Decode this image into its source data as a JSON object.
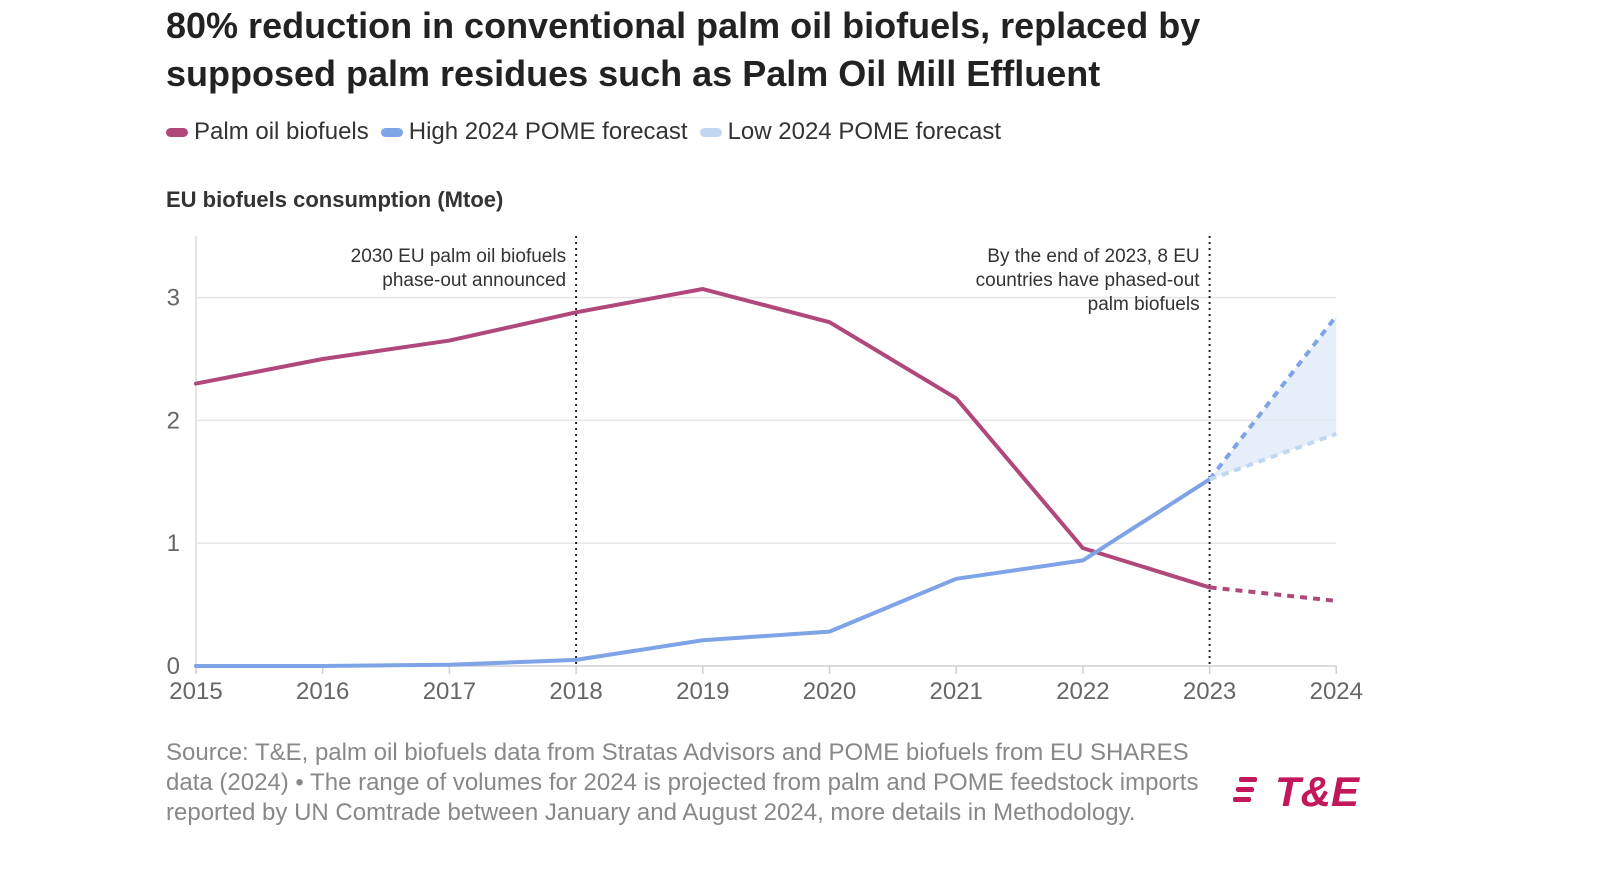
{
  "title": "80% reduction in conventional palm oil biofuels, replaced by supposed palm residues such as Palm Oil Mill Effluent",
  "legend": [
    {
      "label": "Palm oil biofuels",
      "color": "#b0487a"
    },
    {
      "label": "High 2024 POME forecast",
      "color": "#7ea3e6"
    },
    {
      "label": "Low 2024 POME forecast",
      "color": "#bfd8f0"
    }
  ],
  "subtitle": "EU biofuels consumption (Mtoe)",
  "source": "Source: T&E, palm oil biofuels data from Stratas Advisors and POME biofuels from EU SHARES data (2024) • The range of volumes for 2024 is projected from palm and POME feedstock imports reported by UN Comtrade between January and August 2024, more details in Methodology.",
  "logo": "T&E",
  "chart_data": {
    "type": "line",
    "title": "80% reduction in conventional palm oil biofuels, replaced by supposed palm residues such as Palm Oil Mill Effluent",
    "xlabel": "",
    "ylabel": "EU biofuels consumption (Mtoe)",
    "categories": [
      "2015",
      "2016",
      "2017",
      "2018",
      "2019",
      "2020",
      "2021",
      "2022",
      "2023",
      "2024"
    ],
    "ylim": [
      0,
      3.5
    ],
    "yticks": [
      "0",
      "1",
      "2",
      "3"
    ],
    "grid": true,
    "series": [
      {
        "name": "Palm oil biofuels",
        "color": "#b0487a",
        "values": [
          2.3,
          2.5,
          2.65,
          2.88,
          3.07,
          2.8,
          2.18,
          0.96,
          0.64,
          0.53
        ],
        "projected_from": "2023"
      },
      {
        "name": "High 2024 POME forecast",
        "color": "#7ea3e6",
        "values": [
          0.0,
          0.0,
          0.01,
          0.05,
          0.21,
          0.28,
          0.71,
          0.86,
          1.52,
          2.85
        ],
        "projected_from": "2023"
      },
      {
        "name": "Low 2024 POME forecast",
        "color": "#bfd8f0",
        "values": [
          null,
          null,
          null,
          null,
          null,
          null,
          null,
          null,
          1.52,
          1.89
        ],
        "projected_from": "2023"
      }
    ],
    "annotations": [
      {
        "x": "2018",
        "lines": [
          "2030 EU palm oil biofuels",
          "phase-out announced"
        ]
      },
      {
        "x": "2023",
        "lines": [
          "By the end of 2023, 8 EU",
          "countries have phased-out",
          "palm biofuels"
        ]
      }
    ]
  }
}
